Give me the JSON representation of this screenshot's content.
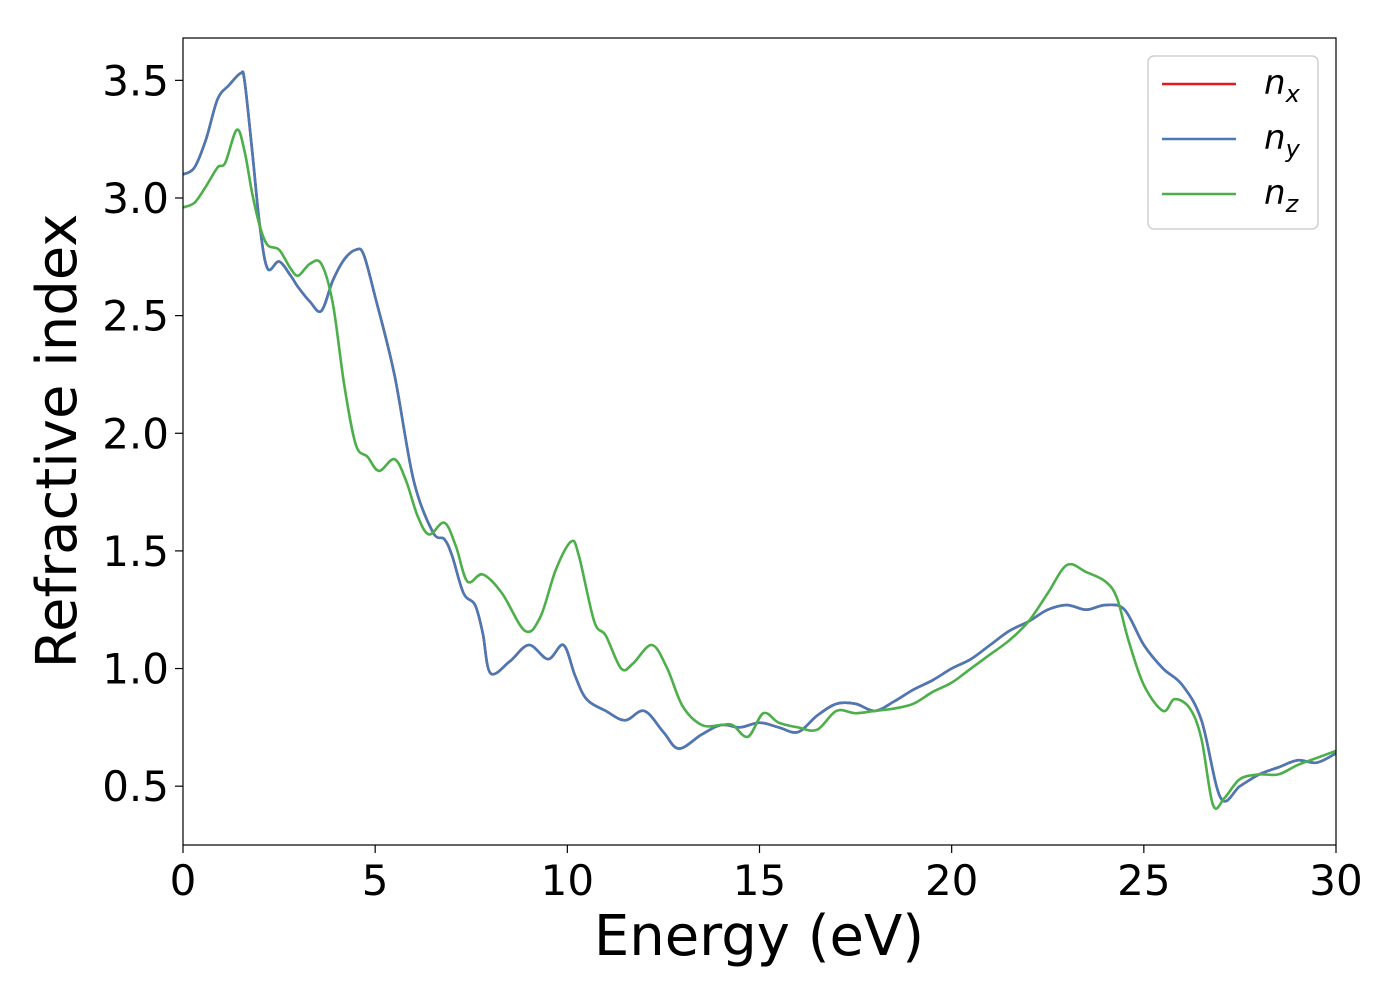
{
  "chart_data": {
    "type": "line",
    "xlabel": "Energy (eV)",
    "ylabel": "Refractive index",
    "xlim": [
      0,
      30
    ],
    "ylim": [
      0.25,
      3.68
    ],
    "xticks": [
      0,
      5,
      10,
      15,
      20,
      25,
      30
    ],
    "xtick_labels": [
      "0",
      "5",
      "10",
      "15",
      "20",
      "25",
      "30"
    ],
    "yticks": [
      0.5,
      1.0,
      1.5,
      2.0,
      2.5,
      3.0,
      3.5
    ],
    "ytick_labels": [
      "0.5",
      "1.0",
      "1.5",
      "2.0",
      "2.5",
      "3.0",
      "3.5"
    ],
    "grid": false,
    "legend_position": "top-right",
    "series": [
      {
        "name": "n_x",
        "legend_main": "n",
        "legend_sub": "x",
        "color": "#e41a1c",
        "x": [
          0,
          0.3,
          0.6,
          0.9,
          1.2,
          1.5,
          1.6,
          1.8,
          2.0,
          2.2,
          2.5,
          2.8,
          3.0,
          3.3,
          3.6,
          3.9,
          4.2,
          4.5,
          4.7,
          5.0,
          5.5,
          6.0,
          6.5,
          6.8,
          7.0,
          7.3,
          7.6,
          7.8,
          8.0,
          8.5,
          9.0,
          9.5,
          9.9,
          10.2,
          10.5,
          11.0,
          11.5,
          12.0,
          12.5,
          12.9,
          13.5,
          14.0,
          14.5,
          15.0,
          15.5,
          16.0,
          16.5,
          17.0,
          17.5,
          18.0,
          18.5,
          19.0,
          19.5,
          20.0,
          20.5,
          21.0,
          21.5,
          22.0,
          22.5,
          23.0,
          23.5,
          24.0,
          24.5,
          25.0,
          25.5,
          26.0,
          26.5,
          27.0,
          27.5,
          28.0,
          28.5,
          29.0,
          29.5,
          30.0
        ],
        "y": [
          3.1,
          3.13,
          3.25,
          3.42,
          3.48,
          3.53,
          3.5,
          3.2,
          2.88,
          2.7,
          2.73,
          2.67,
          2.62,
          2.56,
          2.52,
          2.65,
          2.74,
          2.78,
          2.76,
          2.58,
          2.25,
          1.8,
          1.58,
          1.55,
          1.48,
          1.32,
          1.27,
          1.15,
          0.98,
          1.03,
          1.1,
          1.04,
          1.1,
          0.97,
          0.87,
          0.82,
          0.78,
          0.82,
          0.73,
          0.66,
          0.72,
          0.76,
          0.75,
          0.77,
          0.75,
          0.73,
          0.8,
          0.85,
          0.85,
          0.82,
          0.86,
          0.91,
          0.95,
          1.0,
          1.04,
          1.1,
          1.16,
          1.2,
          1.25,
          1.27,
          1.25,
          1.27,
          1.25,
          1.1,
          1.0,
          0.93,
          0.78,
          0.45,
          0.5,
          0.55,
          0.58,
          0.61,
          0.6,
          0.64
        ]
      },
      {
        "name": "n_y",
        "legend_main": "n",
        "legend_sub": "y",
        "color": "#4a7ab5",
        "x": [
          0,
          0.3,
          0.6,
          0.9,
          1.2,
          1.5,
          1.6,
          1.8,
          2.0,
          2.2,
          2.5,
          2.8,
          3.0,
          3.3,
          3.6,
          3.9,
          4.2,
          4.5,
          4.7,
          5.0,
          5.5,
          6.0,
          6.5,
          6.8,
          7.0,
          7.3,
          7.6,
          7.8,
          8.0,
          8.5,
          9.0,
          9.5,
          9.9,
          10.2,
          10.5,
          11.0,
          11.5,
          12.0,
          12.5,
          12.9,
          13.5,
          14.0,
          14.5,
          15.0,
          15.5,
          16.0,
          16.5,
          17.0,
          17.5,
          18.0,
          18.5,
          19.0,
          19.5,
          20.0,
          20.5,
          21.0,
          21.5,
          22.0,
          22.5,
          23.0,
          23.5,
          24.0,
          24.5,
          25.0,
          25.5,
          26.0,
          26.5,
          27.0,
          27.5,
          28.0,
          28.5,
          29.0,
          29.5,
          30.0
        ],
        "y": [
          3.1,
          3.13,
          3.25,
          3.42,
          3.48,
          3.53,
          3.5,
          3.2,
          2.88,
          2.7,
          2.73,
          2.67,
          2.62,
          2.56,
          2.52,
          2.65,
          2.74,
          2.78,
          2.76,
          2.58,
          2.25,
          1.8,
          1.58,
          1.55,
          1.48,
          1.32,
          1.27,
          1.15,
          0.98,
          1.03,
          1.1,
          1.04,
          1.1,
          0.97,
          0.87,
          0.82,
          0.78,
          0.82,
          0.73,
          0.66,
          0.72,
          0.76,
          0.75,
          0.77,
          0.75,
          0.73,
          0.8,
          0.85,
          0.85,
          0.82,
          0.86,
          0.91,
          0.95,
          1.0,
          1.04,
          1.1,
          1.16,
          1.2,
          1.25,
          1.27,
          1.25,
          1.27,
          1.25,
          1.1,
          1.0,
          0.93,
          0.78,
          0.45,
          0.5,
          0.55,
          0.58,
          0.61,
          0.6,
          0.64
        ]
      },
      {
        "name": "n_z",
        "legend_main": "n",
        "legend_sub": "z",
        "color": "#4daf4a",
        "x": [
          0,
          0.3,
          0.6,
          0.9,
          1.1,
          1.4,
          1.6,
          1.8,
          2.0,
          2.2,
          2.5,
          2.8,
          3.0,
          3.3,
          3.6,
          3.9,
          4.2,
          4.5,
          4.8,
          5.1,
          5.5,
          5.8,
          6.1,
          6.4,
          6.8,
          7.1,
          7.4,
          7.8,
          8.3,
          8.9,
          9.3,
          9.7,
          10.1,
          10.3,
          10.7,
          11.0,
          11.4,
          11.7,
          12.2,
          12.6,
          13.0,
          13.5,
          14.0,
          14.3,
          14.7,
          15.1,
          15.5,
          16.0,
          16.5,
          17.0,
          17.5,
          18.0,
          18.5,
          19.0,
          19.5,
          20.0,
          20.5,
          21.0,
          21.5,
          22.0,
          22.5,
          23.0,
          23.5,
          24.0,
          24.3,
          24.6,
          25.0,
          25.5,
          25.8,
          26.2,
          26.5,
          26.8,
          27.1,
          27.5,
          28.0,
          28.5,
          29.0,
          29.5,
          30.0
        ],
        "y": [
          2.96,
          2.98,
          3.05,
          3.13,
          3.15,
          3.29,
          3.2,
          3.02,
          2.88,
          2.8,
          2.78,
          2.7,
          2.67,
          2.72,
          2.72,
          2.55,
          2.2,
          1.95,
          1.9,
          1.84,
          1.89,
          1.8,
          1.65,
          1.57,
          1.62,
          1.52,
          1.37,
          1.4,
          1.32,
          1.16,
          1.22,
          1.42,
          1.54,
          1.48,
          1.2,
          1.14,
          1.0,
          1.02,
          1.1,
          1.0,
          0.84,
          0.76,
          0.76,
          0.76,
          0.71,
          0.81,
          0.77,
          0.75,
          0.74,
          0.82,
          0.81,
          0.82,
          0.83,
          0.85,
          0.9,
          0.94,
          1.0,
          1.06,
          1.12,
          1.2,
          1.32,
          1.44,
          1.41,
          1.37,
          1.3,
          1.12,
          0.93,
          0.82,
          0.87,
          0.83,
          0.7,
          0.42,
          0.45,
          0.53,
          0.55,
          0.55,
          0.59,
          0.62,
          0.65
        ]
      }
    ]
  }
}
